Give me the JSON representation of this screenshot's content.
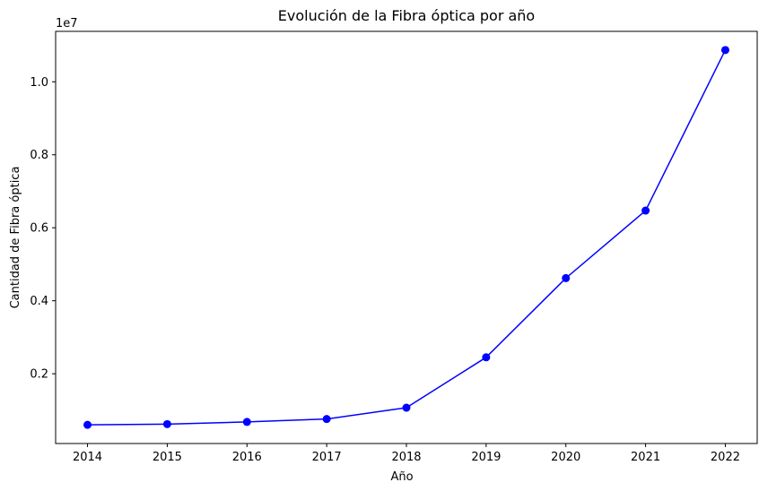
{
  "chart_data": {
    "type": "line",
    "title": "Evolución de la Fibra óptica por año",
    "xlabel": "Año",
    "ylabel": "Cantidad de Fibra óptica",
    "y_offset_label": "1e7",
    "x": [
      2014,
      2015,
      2016,
      2017,
      2018,
      2019,
      2020,
      2021,
      2022
    ],
    "series": [
      {
        "values": [
          600000,
          620000,
          680000,
          760000,
          1070000,
          2450000,
          4620000,
          6470000,
          10870000
        ],
        "color": "#0000ff",
        "marker": "circle"
      }
    ],
    "x_ticks": [
      "2014",
      "2015",
      "2016",
      "2017",
      "2018",
      "2019",
      "2020",
      "2021",
      "2022"
    ],
    "y_ticks": [
      {
        "value": 2000000,
        "label": "0.2"
      },
      {
        "value": 4000000,
        "label": "0.4"
      },
      {
        "value": 6000000,
        "label": "0.6"
      },
      {
        "value": 8000000,
        "label": "0.8"
      },
      {
        "value": 10000000,
        "label": "1.0"
      }
    ],
    "xlim": [
      2013.6,
      2022.4
    ],
    "ylim": [
      88500,
      11381500
    ],
    "grid": false,
    "legend": false
  }
}
